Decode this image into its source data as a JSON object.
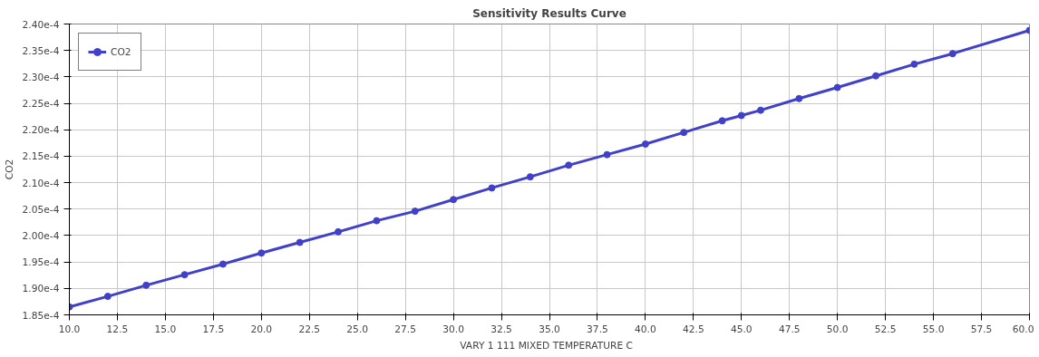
{
  "chart_data": {
    "type": "line",
    "title": "Sensitivity Results Curve",
    "xlabel": "VARY   1 111 MIXED TEMPERATURE C",
    "ylabel": "CO2",
    "series": [
      {
        "name": "CO2",
        "color": "#4040c8",
        "x": [
          10,
          12,
          14,
          16,
          18,
          20,
          22,
          24,
          26,
          28,
          30,
          32,
          34,
          36,
          38,
          40,
          42,
          44,
          45,
          46,
          48,
          50,
          52,
          54,
          56,
          60
        ],
        "values": [
          0.0001865,
          0.0001885,
          0.0001906,
          0.0001926,
          0.0001946,
          0.0001967,
          0.0001987,
          0.0002007,
          0.0002028,
          0.0002046,
          0.0002068,
          0.000209,
          0.0002111,
          0.0002133,
          0.0002153,
          0.0002173,
          0.0002195,
          0.0002217,
          0.0002227,
          0.0002237,
          0.0002259,
          0.000228,
          0.0002302,
          0.0002324,
          0.0002344,
          0.0002388
        ]
      }
    ],
    "xlim": [
      10,
      60
    ],
    "xticks": [
      {
        "value": 10,
        "label": "10.0"
      },
      {
        "value": 12.5,
        "label": "12.5"
      },
      {
        "value": 15,
        "label": "15.0"
      },
      {
        "value": 17.5,
        "label": "17.5"
      },
      {
        "value": 20,
        "label": "20.0"
      },
      {
        "value": 22.5,
        "label": "22.5"
      },
      {
        "value": 25,
        "label": "25.0"
      },
      {
        "value": 27.5,
        "label": "27.5"
      },
      {
        "value": 30,
        "label": "30.0"
      },
      {
        "value": 32.5,
        "label": "32.5"
      },
      {
        "value": 35,
        "label": "35.0"
      },
      {
        "value": 37.5,
        "label": "37.5"
      },
      {
        "value": 40,
        "label": "40.0"
      },
      {
        "value": 42.5,
        "label": "42.5"
      },
      {
        "value": 45,
        "label": "45.0"
      },
      {
        "value": 47.5,
        "label": "47.5"
      },
      {
        "value": 50,
        "label": "50.0"
      },
      {
        "value": 52.5,
        "label": "52.5"
      },
      {
        "value": 55,
        "label": "55.0"
      },
      {
        "value": 57.5,
        "label": "57.5"
      },
      {
        "value": 60,
        "label": "60.0"
      }
    ],
    "ylim": [
      0.000185,
      0.00024
    ],
    "yticks": [
      {
        "value": 0.000185,
        "label": "1.85e-4"
      },
      {
        "value": 0.00019,
        "label": "1.90e-4"
      },
      {
        "value": 0.000195,
        "label": "1.95e-4"
      },
      {
        "value": 0.0002,
        "label": "2.00e-4"
      },
      {
        "value": 0.000205,
        "label": "2.05e-4"
      },
      {
        "value": 0.00021,
        "label": "2.10e-4"
      },
      {
        "value": 0.000215,
        "label": "2.15e-4"
      },
      {
        "value": 0.00022,
        "label": "2.20e-4"
      },
      {
        "value": 0.000225,
        "label": "2.25e-4"
      },
      {
        "value": 0.00023,
        "label": "2.30e-4"
      },
      {
        "value": 0.000235,
        "label": "2.35e-4"
      },
      {
        "value": 0.00024,
        "label": "2.40e-4"
      }
    ],
    "grid": true,
    "legend": "top left",
    "marker": "circle",
    "line_style": "solid"
  }
}
